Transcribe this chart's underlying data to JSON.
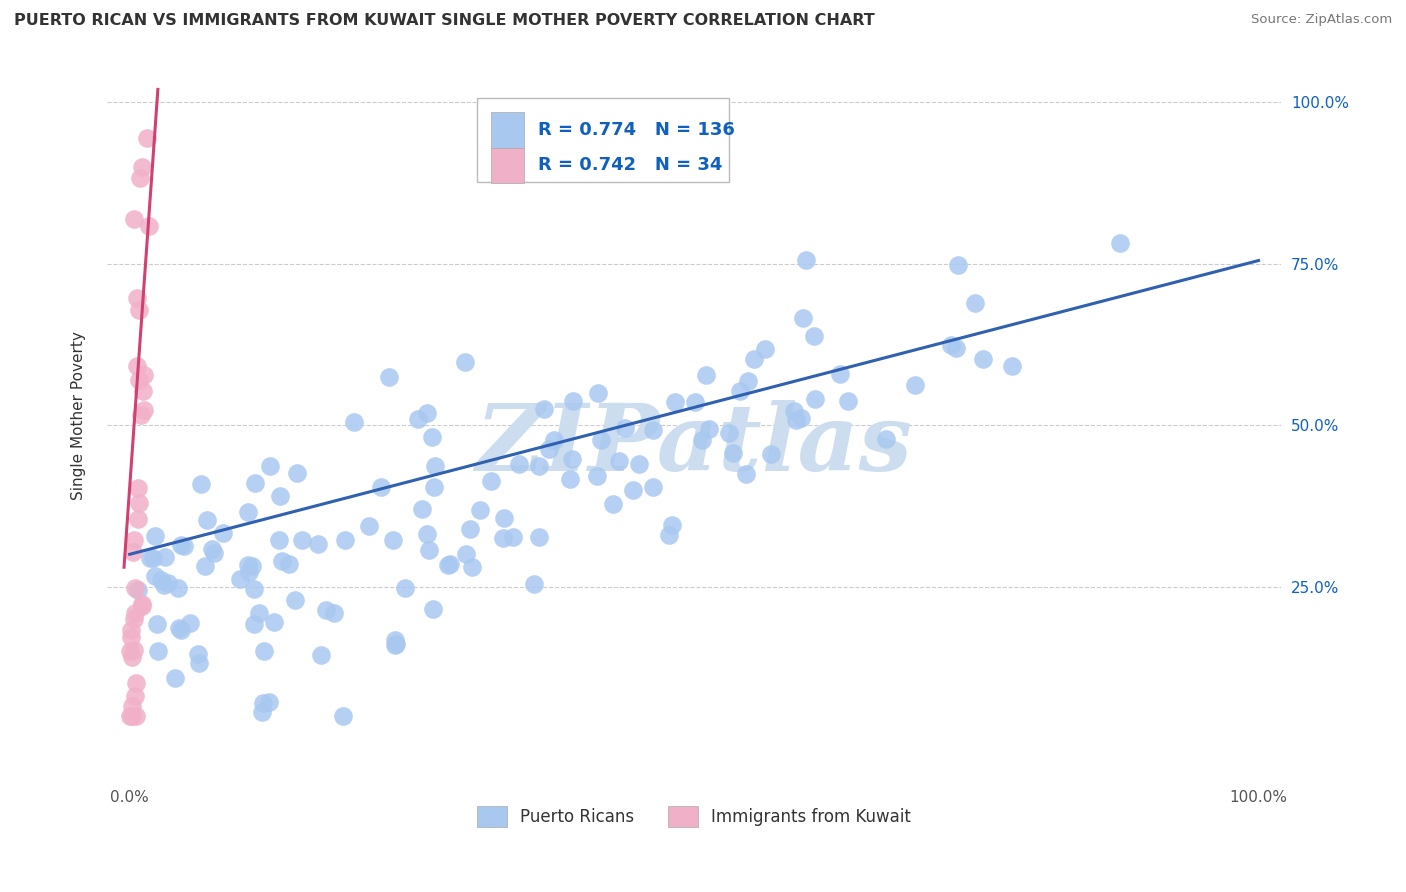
{
  "title": "PUERTO RICAN VS IMMIGRANTS FROM KUWAIT SINGLE MOTHER POVERTY CORRELATION CHART",
  "source": "Source: ZipAtlas.com",
  "ylabel": "Single Mother Poverty",
  "pr_R": 0.774,
  "pr_N": 136,
  "kw_R": 0.742,
  "kw_N": 34,
  "pr_color": "#a8c8f0",
  "kw_color": "#f0b0c8",
  "pr_line_color": "#3060b0",
  "kw_line_color": "#d04070",
  "grid_color": "#cccccc",
  "background_color": "#ffffff",
  "watermark_color": "#ccddef",
  "legend_color": "#1060c0",
  "ytick_values": [
    0.25,
    0.5,
    0.75,
    1.0
  ],
  "ytick_labels": [
    "25.0%",
    "50.0%",
    "75.0%",
    "100.0%"
  ],
  "xtick_values": [
    0.0,
    1.0
  ],
  "xtick_labels": [
    "0.0%",
    "100.0%"
  ],
  "xlim": [
    -0.02,
    1.02
  ],
  "ylim": [
    -0.05,
    1.08
  ],
  "pr_line_x0": 0.0,
  "pr_line_y0": 0.3,
  "pr_line_x1": 1.0,
  "pr_line_y1": 0.755,
  "kw_line_x0": -0.005,
  "kw_line_y0": 0.28,
  "kw_line_x1": 0.025,
  "kw_line_y1": 1.02
}
